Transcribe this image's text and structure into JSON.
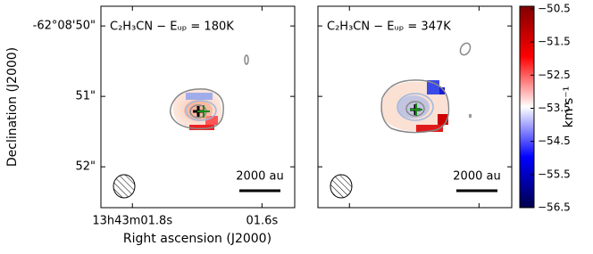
{
  "chart_data": [
    {
      "type": "image",
      "title": "C₂H₃CN − Eᵤₚ = 180K",
      "xlabel": "Right ascension (J2000)",
      "ylabel": "Declination (J2000)",
      "xlim": [
        1.8486,
        1.5495
      ],
      "ylim": [
        52.58,
        49.72
      ],
      "xticks": [
        {
          "value": 1.8,
          "label": "13h43m01.8s"
        },
        {
          "value": 1.6,
          "label": "01.6s"
        }
      ],
      "yticks": [
        {
          "value": 50,
          "label": "-62°08'50\""
        },
        {
          "value": 51,
          "label": "51\""
        },
        {
          "value": 52,
          "label": "52\""
        }
      ],
      "scalebar": "2000 au"
    },
    {
      "type": "image",
      "title": "C₂H₃CN − Eᵤₚ = 347K",
      "xlim": [
        1.8486,
        1.5495
      ],
      "ylim": [
        52.58,
        49.72
      ],
      "scalebar": "2000 au"
    },
    {
      "type": "colorbar",
      "label": "km s⁻¹",
      "clim": [
        -56.5,
        -50.42
      ],
      "ticks": [
        {
          "value": -50.5,
          "label": "−50.5"
        },
        {
          "value": -51.5,
          "label": "−51.5"
        },
        {
          "value": -52.5,
          "label": "−52.5"
        },
        {
          "value": -53.5,
          "label": "−53.5"
        },
        {
          "value": -54.5,
          "label": "−54.5"
        },
        {
          "value": -55.5,
          "label": "−55.5"
        },
        {
          "value": -56.5,
          "label": "−56.5"
        }
      ],
      "colors": [
        "#00004c",
        "#0000ff",
        "#ffffff",
        "#ff0000",
        "#800000"
      ]
    }
  ]
}
